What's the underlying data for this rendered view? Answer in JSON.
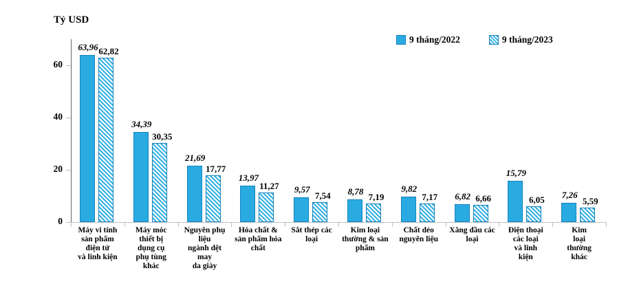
{
  "chart": {
    "axis_title": "Tỷ USD",
    "legend": {
      "items": [
        {
          "label": "9 tháng/2022",
          "style": "solid"
        },
        {
          "label": "9 tháng/2023",
          "style": "hatched"
        }
      ]
    },
    "y_ticks": [
      0,
      20,
      40,
      60
    ],
    "colors": {
      "bar_fill": "#29ABE2",
      "bar_border": "#1581BE",
      "hatch_stripe": "#29ABE2",
      "hatch_bg": "#FFFFFF",
      "y_axis_line": "#666666",
      "baseline": "#BFBFBF",
      "tick": "#BFBFBF",
      "text": "#000000"
    }
  },
  "chart_data": {
    "type": "bar",
    "title": "",
    "xlabel": "",
    "ylabel": "Tỷ USD",
    "ylim": [
      0,
      70
    ],
    "grid": false,
    "legend_position": "top-right",
    "decimal_separator": ",",
    "categories": [
      "Máy vi tính sản phẩm điện tử và linh kiện",
      "Máy móc thiết bị dụng cụ phụ tùng khác",
      "Nguyên phụ liệu ngành dệt may da giày",
      "Hóa chất & sản phẩm hóa chất",
      "Sắt thép các loại",
      "Kim loại thường & sản phẩm",
      "Chất dẻo nguyên liệu",
      "Xăng dầu các loại",
      "Điện thoại các loại và linh kiện",
      "Kim loại thường khác"
    ],
    "category_lines": [
      [
        "Máy vi tính",
        "sản phẩm",
        "điện tử",
        "và linh kiện"
      ],
      [
        "Máy móc",
        "thiết bị",
        "dụng cụ",
        "phụ tùng",
        "khác"
      ],
      [
        "Nguyên phụ",
        "liệu",
        "ngành dệt",
        "may",
        "da giày"
      ],
      [
        "Hóa chất &",
        "sản phẩm hóa",
        "chất"
      ],
      [
        "Sắt thép các",
        "loại"
      ],
      [
        "Kim loại",
        "thường & sản",
        "phẩm"
      ],
      [
        "Chất dẻo",
        "nguyên liệu"
      ],
      [
        "Xăng dầu các",
        "loại"
      ],
      [
        "Điện thoại",
        "các loại",
        "và linh",
        "kiện"
      ],
      [
        "Kim",
        "loại",
        "thường",
        "khác"
      ]
    ],
    "series": [
      {
        "name": "9 tháng/2022",
        "values": [
          63.96,
          34.39,
          21.69,
          13.97,
          9.57,
          8.78,
          9.82,
          6.82,
          15.79,
          7.26
        ]
      },
      {
        "name": "9 tháng/2023",
        "values": [
          62.82,
          30.35,
          17.77,
          11.27,
          7.54,
          7.19,
          7.17,
          6.66,
          6.05,
          5.59
        ]
      }
    ],
    "value_labels": [
      [
        "63,96",
        "34,39",
        "21,69",
        "13,97",
        "9,57",
        "8,78",
        "9,82",
        "6,82",
        "15,79",
        "7,26"
      ],
      [
        "62,82",
        "30,35",
        "17,77",
        "11,27",
        "7,54",
        "7,19",
        "7,17",
        "6,66",
        "6,05",
        "5,59"
      ]
    ]
  }
}
